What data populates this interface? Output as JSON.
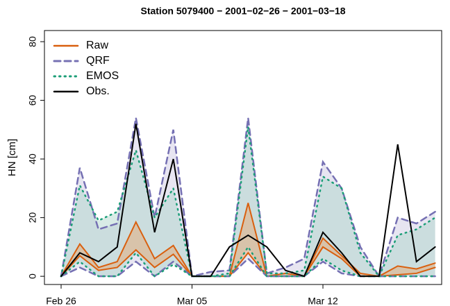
{
  "chart_data": {
    "type": "band-line",
    "title": "Station 5079400 − 2001−02−26 − 2001−03−18",
    "ylabel": "HN [cm]",
    "categories": [
      "Feb 26",
      null,
      null,
      null,
      null,
      null,
      null,
      "Mar 05",
      null,
      null,
      null,
      null,
      null,
      null,
      "Mar 12",
      null,
      null,
      null,
      null,
      null,
      null
    ],
    "ylim": [
      -2.8,
      83.8
    ],
    "yticks": [
      0,
      20,
      40,
      60,
      80
    ],
    "legend": "top-left",
    "series": [
      {
        "name": "Raw",
        "color": "#d95f0e",
        "fill": "#e8a36b",
        "dash": "solid",
        "upper": [
          0,
          11,
          3,
          5,
          18.5,
          6,
          10.5,
          0,
          0,
          0,
          25,
          0,
          1,
          0,
          13,
          7,
          1,
          0,
          3.5,
          2.5,
          4.5
        ],
        "lower": [
          0,
          7,
          2,
          3,
          9,
          3,
          7.5,
          0,
          0,
          0,
          8,
          0,
          0,
          0,
          10,
          6,
          0,
          0,
          0.5,
          1,
          3
        ]
      },
      {
        "name": "QRF",
        "color": "#7570b3",
        "fill": "#c9c6e0",
        "dash": "dashed",
        "upper": [
          0,
          37,
          16,
          18,
          54,
          20,
          50,
          0,
          1.5,
          2,
          54,
          1,
          3,
          6,
          39,
          30,
          10,
          0,
          20,
          18,
          22
        ],
        "lower": [
          0,
          3,
          0,
          0,
          5,
          0,
          5,
          0,
          0,
          0,
          6,
          0,
          0,
          0,
          5,
          1,
          0,
          0,
          0,
          0,
          0
        ]
      },
      {
        "name": "EMOS",
        "color": "#1b9e77",
        "fill": "#a9d3c8",
        "dash": "dotted",
        "upper": [
          0,
          31,
          19,
          22,
          43,
          20,
          30,
          0,
          0,
          1,
          51,
          1,
          1,
          2,
          34,
          30,
          8,
          0,
          14,
          16,
          20
        ],
        "lower": [
          0,
          5,
          0,
          0,
          8,
          0,
          4,
          0,
          0,
          0,
          10,
          0,
          0,
          0,
          6,
          2,
          0,
          0,
          0,
          0,
          0
        ]
      },
      {
        "name": "Obs.",
        "color": "#000000",
        "dash": "solid",
        "values": [
          0,
          8,
          5,
          10,
          52,
          15,
          40,
          0,
          0,
          10,
          14,
          10,
          2,
          0,
          15,
          8,
          0,
          0,
          45,
          5,
          10
        ]
      }
    ]
  }
}
